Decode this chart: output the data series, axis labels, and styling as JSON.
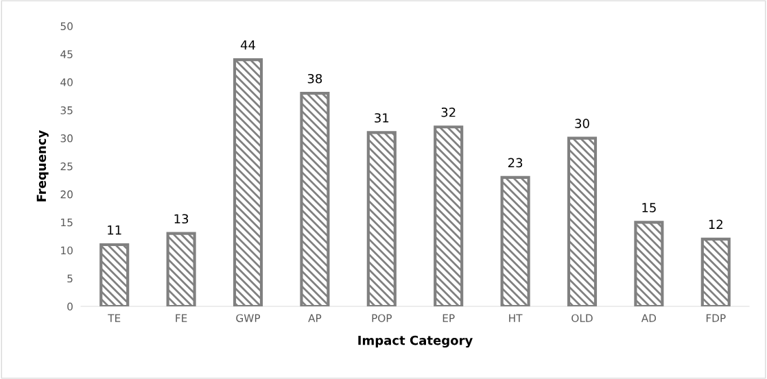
{
  "chart_data": {
    "type": "bar",
    "xlabel": "Impact Category",
    "ylabel": "Frequency",
    "categories": [
      "TE",
      "FE",
      "GWP",
      "AP",
      "POP",
      "EP",
      "HT",
      "OLD",
      "AD",
      "FDP"
    ],
    "values": [
      11,
      13,
      44,
      38,
      31,
      32,
      23,
      30,
      15,
      12
    ],
    "color": "#808080",
    "ylim": [
      0,
      50
    ],
    "yticks": [
      0,
      5,
      10,
      15,
      20,
      25,
      30,
      35,
      40,
      45,
      50
    ],
    "grid": false,
    "data_labels": true
  }
}
